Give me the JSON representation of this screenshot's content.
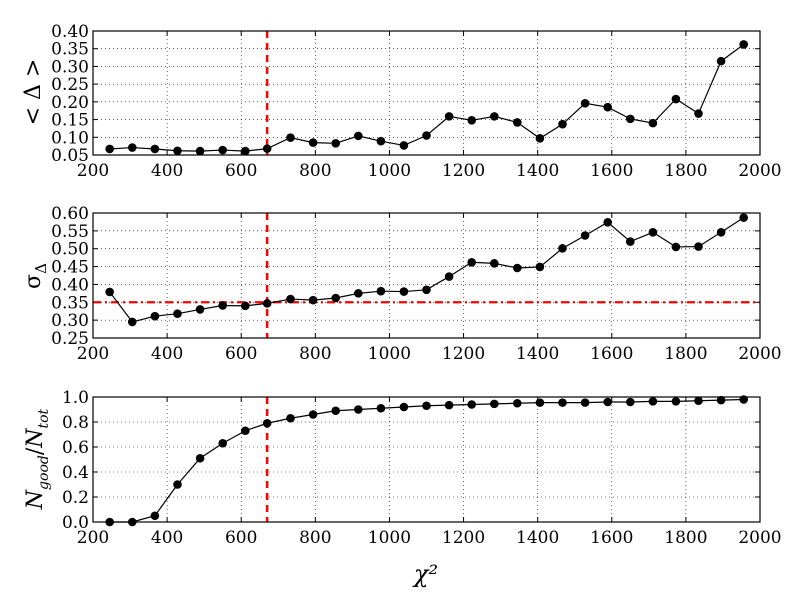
{
  "x_axis_label": "χ²",
  "chart_data": [
    {
      "type": "line",
      "ylabel": "< Δ >",
      "xlim": [
        200,
        2000
      ],
      "ylim": [
        0.05,
        0.4
      ],
      "xticks": [
        "200",
        "400",
        "600",
        "800",
        "1000",
        "1200",
        "1400",
        "1600",
        "1800",
        "2000"
      ],
      "yticks": [
        "0.05",
        "0.10",
        "0.15",
        "0.20",
        "0.25",
        "0.30",
        "0.35",
        "0.40"
      ],
      "grid": true,
      "vline": 670,
      "x": [
        245,
        306,
        367,
        428,
        489,
        550,
        611,
        670,
        733,
        794,
        855,
        916,
        977,
        1039,
        1100,
        1161,
        1222,
        1283,
        1345,
        1406,
        1467,
        1528,
        1589,
        1650,
        1711,
        1773,
        1834,
        1895,
        1956
      ],
      "values": [
        0.067,
        0.071,
        0.067,
        0.062,
        0.061,
        0.064,
        0.061,
        0.068,
        0.099,
        0.085,
        0.083,
        0.104,
        0.089,
        0.077,
        0.105,
        0.159,
        0.148,
        0.159,
        0.142,
        0.097,
        0.137,
        0.196,
        0.185,
        0.152,
        0.14,
        0.208,
        0.167,
        0.315,
        0.362
      ],
      "colors": {
        "line": "#000000",
        "marker": "#000000",
        "reference": "#ff0000"
      }
    },
    {
      "type": "line",
      "ylabel": "σΔ",
      "xlim": [
        200,
        2000
      ],
      "ylim": [
        0.25,
        0.6
      ],
      "xticks": [
        "200",
        "400",
        "600",
        "800",
        "1000",
        "1200",
        "1400",
        "1600",
        "1800",
        "2000"
      ],
      "yticks": [
        "0.25",
        "0.30",
        "0.35",
        "0.40",
        "0.45",
        "0.50",
        "0.55",
        "0.60"
      ],
      "grid": true,
      "vline": 670,
      "hline": 0.35,
      "x": [
        245,
        306,
        367,
        428,
        489,
        550,
        611,
        670,
        733,
        794,
        855,
        916,
        977,
        1039,
        1100,
        1161,
        1222,
        1283,
        1345,
        1406,
        1467,
        1528,
        1589,
        1650,
        1711,
        1773,
        1834,
        1895,
        1956
      ],
      "values": [
        0.379,
        0.295,
        0.311,
        0.318,
        0.33,
        0.341,
        0.34,
        0.347,
        0.359,
        0.356,
        0.362,
        0.375,
        0.381,
        0.38,
        0.385,
        0.422,
        0.462,
        0.459,
        0.446,
        0.449,
        0.501,
        0.537,
        0.574,
        0.52,
        0.546,
        0.505,
        0.506,
        0.546,
        0.587
      ],
      "colors": {
        "line": "#000000",
        "marker": "#000000",
        "reference": "#ff0000"
      }
    },
    {
      "type": "line",
      "ylabel": "Ngood/Ntot",
      "xlim": [
        200,
        2000
      ],
      "ylim": [
        0.0,
        1.0
      ],
      "xticks": [
        "200",
        "400",
        "600",
        "800",
        "1000",
        "1200",
        "1400",
        "1600",
        "1800",
        "2000"
      ],
      "yticks": [
        "0.0",
        "0.2",
        "0.4",
        "0.6",
        "0.8",
        "1.0"
      ],
      "grid": true,
      "vline": 670,
      "x": [
        245,
        306,
        367,
        428,
        489,
        550,
        611,
        670,
        733,
        794,
        855,
        916,
        977,
        1039,
        1100,
        1161,
        1222,
        1283,
        1345,
        1406,
        1467,
        1528,
        1589,
        1650,
        1711,
        1773,
        1834,
        1895,
        1956
      ],
      "values": [
        0.0,
        0.0,
        0.05,
        0.3,
        0.51,
        0.63,
        0.73,
        0.79,
        0.83,
        0.86,
        0.89,
        0.9,
        0.91,
        0.92,
        0.93,
        0.935,
        0.94,
        0.945,
        0.95,
        0.955,
        0.955,
        0.955,
        0.96,
        0.96,
        0.965,
        0.965,
        0.97,
        0.975,
        0.98
      ],
      "colors": {
        "line": "#000000",
        "marker": "#000000",
        "reference": "#ff0000"
      }
    }
  ]
}
